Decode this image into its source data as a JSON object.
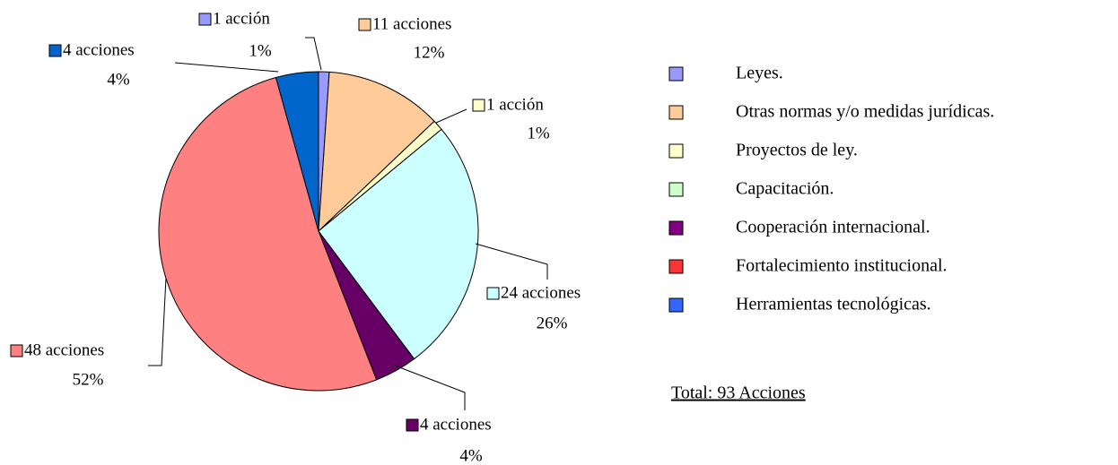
{
  "chart_data": {
    "type": "pie",
    "categories": [
      "Leyes.",
      "Otras normas y/o medidas jurídicas.",
      "Proyectos de ley.",
      "Capacitación.",
      "Cooperación internacional.",
      "Fortalecimiento institucional.",
      "Herramientas tecnológicas."
    ],
    "values": [
      1,
      11,
      1,
      24,
      4,
      48,
      4
    ],
    "value_labels": [
      "1 acción",
      "11 acciones",
      "1 acción",
      "24 acciones",
      "4 acciones",
      "48 acciones",
      "4 acciones"
    ],
    "percent_labels": [
      "1%",
      "12%",
      "1%",
      "26%",
      "4%",
      "52%",
      "4%"
    ],
    "colors": [
      "#9999ff",
      "#ffcc99",
      "#ffffcc",
      "#ccffff",
      "#660066",
      "#ff8080",
      "#0066cc"
    ],
    "legend_colors": [
      "#9999ff",
      "#ffcc99",
      "#ffffcc",
      "#ccffcc",
      "#800080",
      "#ff3333",
      "#3366ff"
    ],
    "legend": "right",
    "note": "Total: 93 Acciones"
  }
}
